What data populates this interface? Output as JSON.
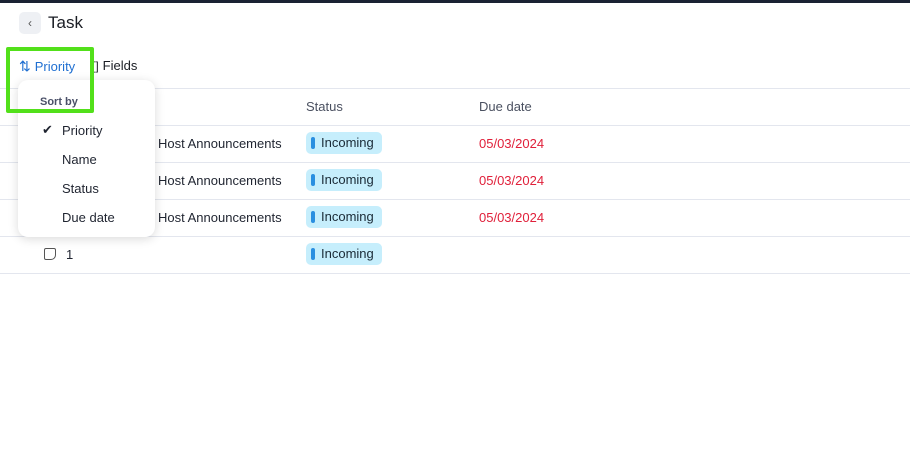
{
  "header": {
    "title": "Task",
    "back_icon": "chevron-left-icon"
  },
  "toolbar": {
    "sort_label": "Priority",
    "fields_label": "Fields"
  },
  "table": {
    "columns": [
      "Status",
      "Due date"
    ],
    "rows": [
      {
        "name": "Host Announcements",
        "status": "Incoming",
        "due": "05/03/2024"
      },
      {
        "name": "Host Announcements",
        "status": "Incoming",
        "due": "05/03/2024"
      },
      {
        "name": "Host Announcements",
        "status": "Incoming",
        "due": "05/03/2024"
      },
      {
        "name": "1",
        "status": "Incoming",
        "due": ""
      }
    ]
  },
  "sort_menu": {
    "heading": "Sort by",
    "items": [
      "Priority",
      "Name",
      "Status",
      "Due date"
    ],
    "selected": "Priority"
  },
  "colors": {
    "accent": "#1f6fd1",
    "due": "#e0203a",
    "badge": "#c6eefc",
    "highlight": "#52e01a"
  }
}
